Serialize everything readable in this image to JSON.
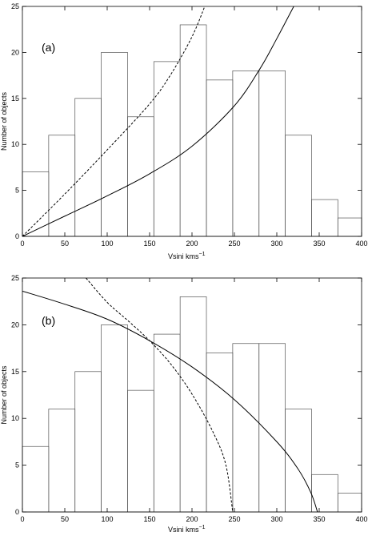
{
  "chart_data": [
    {
      "type": "bar",
      "panel_label": "(a)",
      "xlabel": "Vsini kms",
      "xlabel_superscript": "−1",
      "ylabel": "Number of objects",
      "xlim": [
        0,
        400
      ],
      "ylim": [
        0,
        25
      ],
      "xticks": [
        0,
        50,
        100,
        150,
        200,
        250,
        300,
        350,
        400
      ],
      "yticks": [
        0,
        5,
        10,
        15,
        20,
        25
      ],
      "bin_edges": [
        0,
        31,
        62,
        93,
        124,
        155,
        186,
        217,
        248,
        279,
        310,
        341,
        372,
        403
      ],
      "values": [
        7,
        11,
        15,
        20,
        13,
        19,
        23,
        17,
        18,
        18,
        11,
        4,
        2
      ],
      "series": [
        {
          "style": "solid",
          "x": [
            0,
            50,
            100,
            150,
            200,
            250,
            280,
            300,
            320
          ],
          "y": [
            0,
            2.2,
            4.4,
            6.8,
            9.8,
            14.2,
            18.2,
            21.5,
            25
          ]
        },
        {
          "style": "dashed",
          "x": [
            0,
            50,
            100,
            150,
            175,
            200,
            215
          ],
          "y": [
            0,
            4.6,
            9.4,
            14.4,
            17.6,
            21.7,
            25
          ]
        }
      ],
      "grid": false
    },
    {
      "type": "bar",
      "panel_label": "(b)",
      "xlabel": "Vsini kms",
      "xlabel_superscript": "−1",
      "ylabel": "Number of objects",
      "xlim": [
        0,
        400
      ],
      "ylim": [
        0,
        25
      ],
      "xticks": [
        0,
        50,
        100,
        150,
        200,
        250,
        300,
        350,
        400
      ],
      "yticks": [
        0,
        5,
        10,
        15,
        20,
        25
      ],
      "bin_edges": [
        0,
        31,
        62,
        93,
        124,
        155,
        186,
        217,
        248,
        279,
        310,
        341,
        372,
        403
      ],
      "values": [
        7,
        11,
        15,
        20,
        13,
        19,
        23,
        17,
        18,
        18,
        11,
        4,
        2
      ],
      "series": [
        {
          "style": "solid",
          "x": [
            0,
            50,
            100,
            150,
            200,
            250,
            300,
            325,
            340,
            348
          ],
          "y": [
            23.6,
            22.2,
            20.6,
            18.3,
            15.5,
            12,
            7.5,
            4.6,
            2.1,
            0
          ]
        },
        {
          "style": "dashed",
          "x": [
            75,
            100,
            125,
            150,
            175,
            200,
            225,
            240,
            248
          ],
          "y": [
            25,
            22.4,
            20.4,
            18.3,
            15.8,
            12.6,
            8.5,
            5,
            0
          ]
        }
      ],
      "grid": false
    }
  ]
}
